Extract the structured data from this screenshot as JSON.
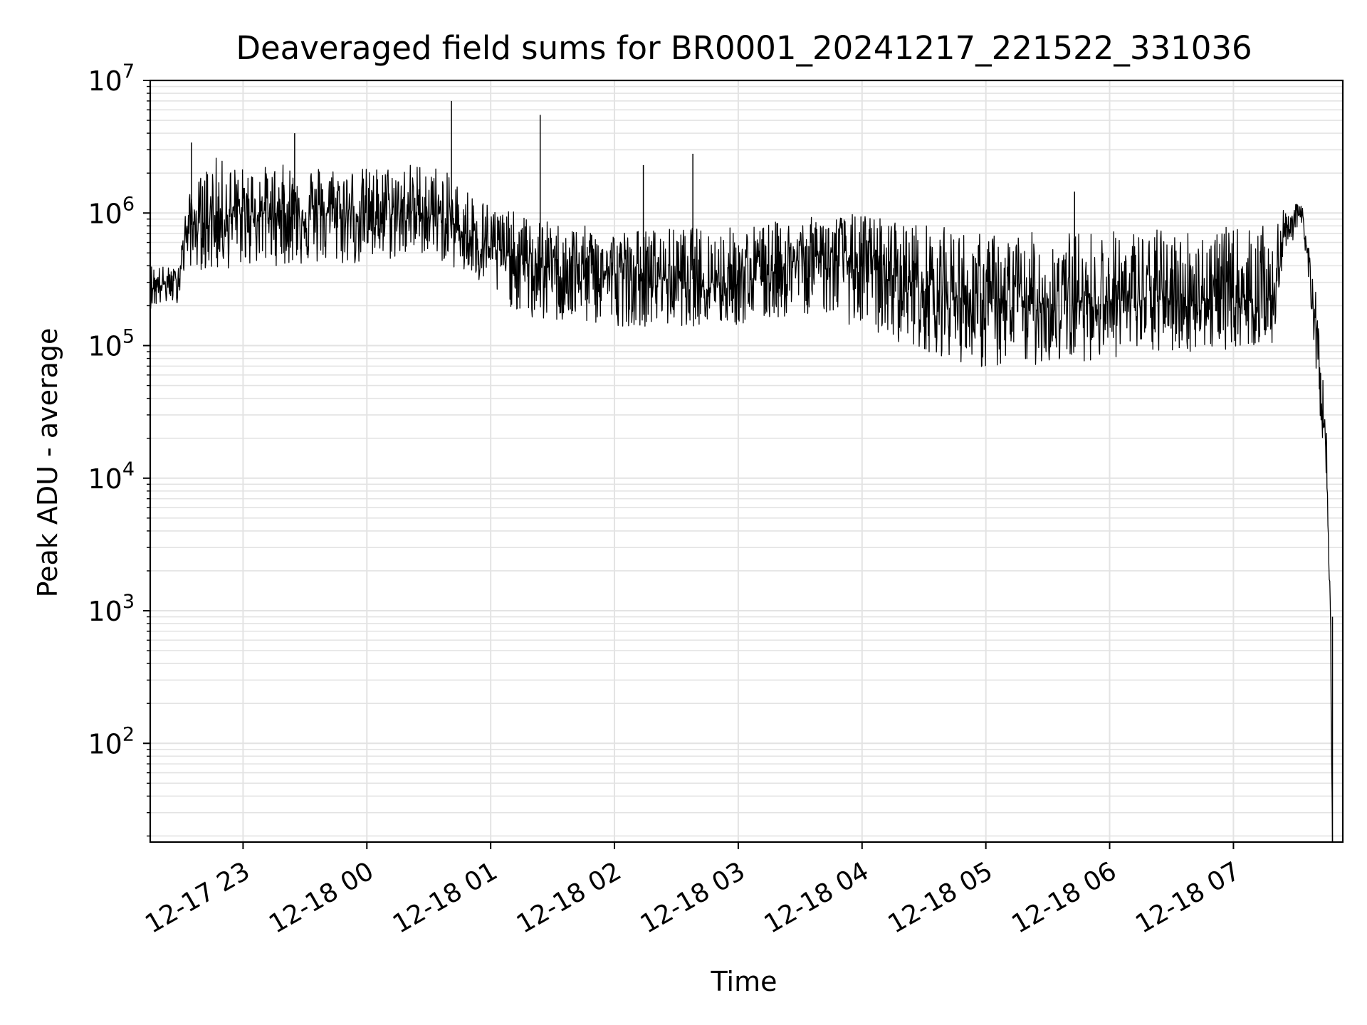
{
  "chart_data": {
    "type": "line",
    "title": "Deaveraged field sums for BR0001_20241217_221522_331036",
    "xlabel": "Time",
    "ylabel": "Peak ADU - average",
    "yscale": "log",
    "ylim": [
      18,
      10000000
    ],
    "xlim": [
      "2024-12-17 22:15",
      "2024-12-18 07:53"
    ],
    "grid": true,
    "x_ticks": [
      {
        "t": "2024-12-17 23:00",
        "label": "12-17 23"
      },
      {
        "t": "2024-12-18 00:00",
        "label": "12-18 00"
      },
      {
        "t": "2024-12-18 01:00",
        "label": "12-18 01"
      },
      {
        "t": "2024-12-18 02:00",
        "label": "12-18 02"
      },
      {
        "t": "2024-12-18 03:00",
        "label": "12-18 03"
      },
      {
        "t": "2024-12-18 04:00",
        "label": "12-18 04"
      },
      {
        "t": "2024-12-18 05:00",
        "label": "12-18 05"
      },
      {
        "t": "2024-12-18 06:00",
        "label": "12-18 06"
      },
      {
        "t": "2024-12-18 07:00",
        "label": "12-18 07"
      }
    ],
    "y_ticks": [
      {
        "exp": 2,
        "base": "10",
        "sup": "2"
      },
      {
        "exp": 3,
        "base": "10",
        "sup": "3"
      },
      {
        "exp": 4,
        "base": "10",
        "sup": "4"
      },
      {
        "exp": 5,
        "base": "10",
        "sup": "5"
      },
      {
        "exp": 6,
        "base": "10",
        "sup": "6"
      },
      {
        "exp": 7,
        "base": "10",
        "sup": "7"
      }
    ],
    "series": [
      {
        "color": "#000000",
        "envelope": [
          {
            "t": "2024-12-17 22:15",
            "median": 280000,
            "low": 190000,
            "high": 420000
          },
          {
            "t": "2024-12-17 22:28",
            "median": 300000,
            "low": 210000,
            "high": 380000
          },
          {
            "t": "2024-12-17 22:33",
            "median": 800000,
            "low": 400000,
            "high": 1300000
          },
          {
            "t": "2024-12-17 22:45",
            "median": 900000,
            "low": 350000,
            "high": 2700000
          },
          {
            "t": "2024-12-17 23:00",
            "median": 1000000,
            "low": 400000,
            "high": 2200000
          },
          {
            "t": "2024-12-17 23:30",
            "median": 1000000,
            "low": 400000,
            "high": 2400000
          },
          {
            "t": "2024-12-18 00:00",
            "median": 1000000,
            "low": 400000,
            "high": 2200000
          },
          {
            "t": "2024-12-18 00:30",
            "median": 1000000,
            "low": 500000,
            "high": 2500000
          },
          {
            "t": "2024-12-18 01:00",
            "median": 550000,
            "low": 250000,
            "high": 1200000
          },
          {
            "t": "2024-12-18 01:20",
            "median": 400000,
            "low": 150000,
            "high": 900000
          },
          {
            "t": "2024-12-18 02:00",
            "median": 350000,
            "low": 140000,
            "high": 750000
          },
          {
            "t": "2024-12-18 03:00",
            "median": 300000,
            "low": 140000,
            "high": 800000
          },
          {
            "t": "2024-12-18 03:40",
            "median": 500000,
            "low": 180000,
            "high": 950000
          },
          {
            "t": "2024-12-18 04:00",
            "median": 400000,
            "low": 130000,
            "high": 1000000
          },
          {
            "t": "2024-12-18 05:00",
            "median": 200000,
            "low": 65000,
            "high": 700000
          },
          {
            "t": "2024-12-18 06:00",
            "median": 220000,
            "low": 80000,
            "high": 750000
          },
          {
            "t": "2024-12-18 07:20",
            "median": 230000,
            "low": 100000,
            "high": 800000
          },
          {
            "t": "2024-12-18 07:25",
            "median": 800000,
            "low": 500000,
            "high": 1100000
          },
          {
            "t": "2024-12-18 07:33",
            "median": 1000000,
            "low": 800000,
            "high": 1200000
          },
          {
            "t": "2024-12-18 07:38",
            "median": 300000,
            "low": 150000,
            "high": 500000
          },
          {
            "t": "2024-12-18 07:42",
            "median": 60000,
            "low": 30000,
            "high": 120000
          },
          {
            "t": "2024-12-18 07:45",
            "median": 15000,
            "low": 10000,
            "high": 30000
          },
          {
            "t": "2024-12-18 07:46",
            "median": 3000,
            "low": 2000,
            "high": 4000
          },
          {
            "t": "2024-12-18 07:47",
            "median": 900,
            "low": 600,
            "high": 1500
          },
          {
            "t": "2024-12-18 07:48",
            "median": 18,
            "low": 18,
            "high": 18
          }
        ],
        "spikes": [
          {
            "t": "2024-12-18 00:41",
            "value": 7000000
          },
          {
            "t": "2024-12-18 01:24",
            "value": 5500000
          },
          {
            "t": "2024-12-18 02:14",
            "value": 2300000
          },
          {
            "t": "2024-12-18 02:38",
            "value": 2800000
          },
          {
            "t": "2024-12-18 05:43",
            "value": 1450000
          },
          {
            "t": "2024-12-17 22:35",
            "value": 3400000
          },
          {
            "t": "2024-12-17 23:25",
            "value": 4000000
          }
        ]
      }
    ]
  }
}
